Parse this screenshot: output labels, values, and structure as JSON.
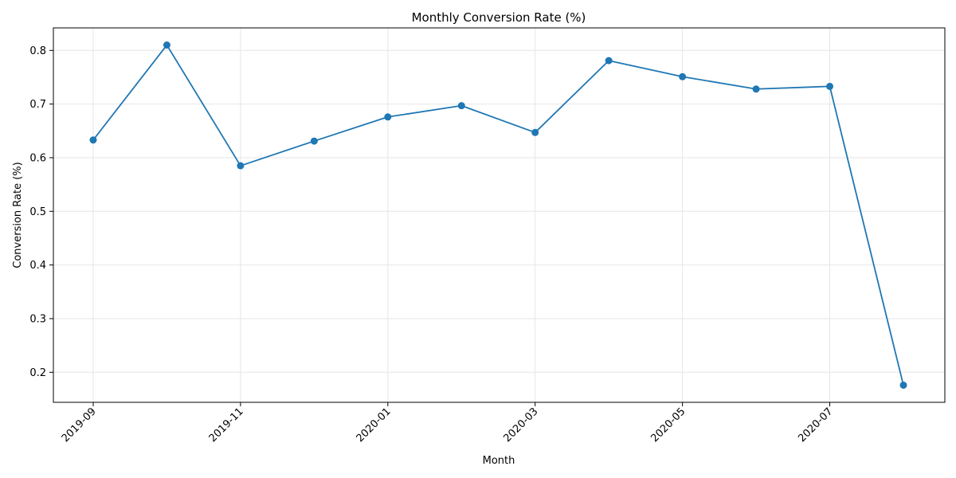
{
  "chart_data": {
    "type": "line",
    "title": "Monthly Conversion Rate (%)",
    "xlabel": "Month",
    "ylabel": "Conversion Rate (%)",
    "x": [
      "2019-09",
      "2019-10",
      "2019-11",
      "2019-12",
      "2020-01",
      "2020-02",
      "2020-03",
      "2020-04",
      "2020-05",
      "2020-06",
      "2020-07",
      "2020-08"
    ],
    "series": [
      {
        "values": [
          0.633,
          0.81,
          0.585,
          0.631,
          0.676,
          0.697,
          0.647,
          0.781,
          0.751,
          0.728,
          0.733,
          0.176
        ]
      }
    ],
    "x_ticks": [
      "2019-09",
      "2019-11",
      "2020-01",
      "2020-03",
      "2020-05",
      "2020-07"
    ],
    "y_ticks": [
      0.2,
      0.3,
      0.4,
      0.5,
      0.6,
      0.7,
      0.8
    ],
    "ylim": [
      0.144,
      0.842
    ],
    "grid": true,
    "line_color": "#1f77b4"
  }
}
